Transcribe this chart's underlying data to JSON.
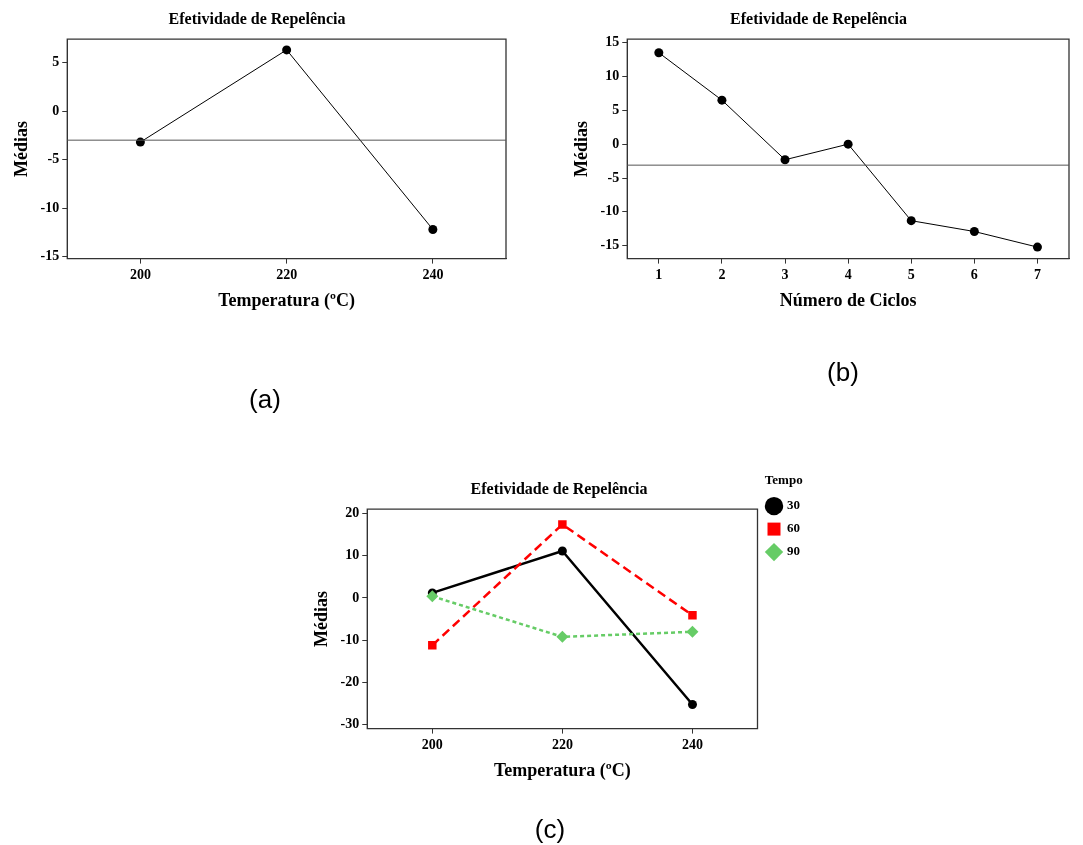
{
  "chart_data": [
    {
      "type": "line",
      "title": "Efetividade de Repelência",
      "xlabel": "Temperatura (ºC)",
      "ylabel": "Médias",
      "x": [
        200,
        220,
        240
      ],
      "values": [
        -3.2,
        6.3,
        -12.2
      ],
      "color": "#000000",
      "marker": "circle",
      "line_style": "solid",
      "xlim": [
        190,
        250
      ],
      "xticks": [
        200,
        220,
        240
      ],
      "ylim": [
        -15.2,
        7.4
      ],
      "yticks": [
        -15,
        -10,
        -5,
        0,
        5
      ],
      "ref_lines": [
        {
          "axis": "y",
          "value": -3.0,
          "color": "#555555"
        }
      ],
      "grid": false,
      "legend": false,
      "annotations": [
        "(a)"
      ]
    },
    {
      "type": "line",
      "title": "Efetividade de Repelência",
      "xlabel": "Número de Ciclos",
      "ylabel": "Médias",
      "x": [
        1,
        2,
        3,
        4,
        5,
        6,
        7
      ],
      "values": [
        13.5,
        6.5,
        -2.3,
        0,
        -11.3,
        -12.9,
        -15.2
      ],
      "color": "#000000",
      "marker": "circle",
      "line_style": "solid",
      "xlim": [
        0.5,
        7.5
      ],
      "xticks": [
        1,
        2,
        3,
        4,
        5,
        6,
        7
      ],
      "ylim": [
        -16.9,
        15.5
      ],
      "yticks": [
        -15,
        -10,
        -5,
        0,
        5,
        10,
        15
      ],
      "ref_lines": [
        {
          "axis": "y",
          "value": -3.1,
          "color": "#555555"
        }
      ],
      "grid": false,
      "legend": false,
      "annotations": [
        "(b)"
      ]
    },
    {
      "type": "line",
      "title": "Efetividade de Repelência",
      "xlabel": "Temperatura (ºC)",
      "ylabel": "Médias",
      "legend_title": "Tempo",
      "x": [
        200,
        220,
        240
      ],
      "series": [
        {
          "name": "30",
          "color": "#000000",
          "values": [
            1.2,
            11.1,
            -25.2
          ],
          "marker": "circle",
          "line_style": "solid"
        },
        {
          "name": "60",
          "color": "#ff0000",
          "values": [
            -11.2,
            17.4,
            -4.1
          ],
          "marker": "square",
          "line_style": "dashed"
        },
        {
          "name": "90",
          "color": "#66cc66",
          "values": [
            0.4,
            -9.2,
            -8.0
          ],
          "marker": "diamond",
          "line_style": "dotted"
        }
      ],
      "xlim": [
        190,
        250
      ],
      "xticks": [
        200,
        220,
        240
      ],
      "ylim": [
        -30.9,
        21
      ],
      "yticks": [
        -30,
        -20,
        -10,
        0,
        10,
        20
      ],
      "grid": false,
      "legend": "right",
      "annotations": [
        "(c)"
      ]
    }
  ]
}
